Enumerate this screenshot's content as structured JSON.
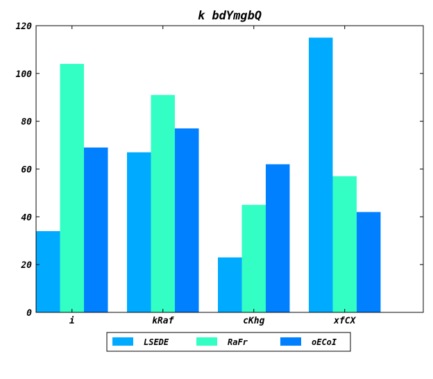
{
  "chart_data": {
    "type": "bar",
    "title": "k bdYmgbQ",
    "xlabel": "",
    "ylabel": "",
    "categories": [
      "i",
      "kRaf",
      "cKhg",
      "xfCX"
    ],
    "series": [
      {
        "name": "LSEDE",
        "values": [
          34,
          67,
          23,
          115
        ],
        "color": "#00aaff"
      },
      {
        "name": "RaFr",
        "values": [
          104,
          91,
          45,
          57
        ],
        "color": "#33ffc4"
      },
      {
        "name": "oECoI",
        "values": [
          69,
          77,
          62,
          42
        ],
        "color": "#0080ff"
      }
    ],
    "ylim": [
      0,
      120
    ],
    "yticks": [
      0,
      20,
      40,
      60,
      80,
      100,
      120
    ],
    "grid": false,
    "legend_position": "bottom-center"
  }
}
